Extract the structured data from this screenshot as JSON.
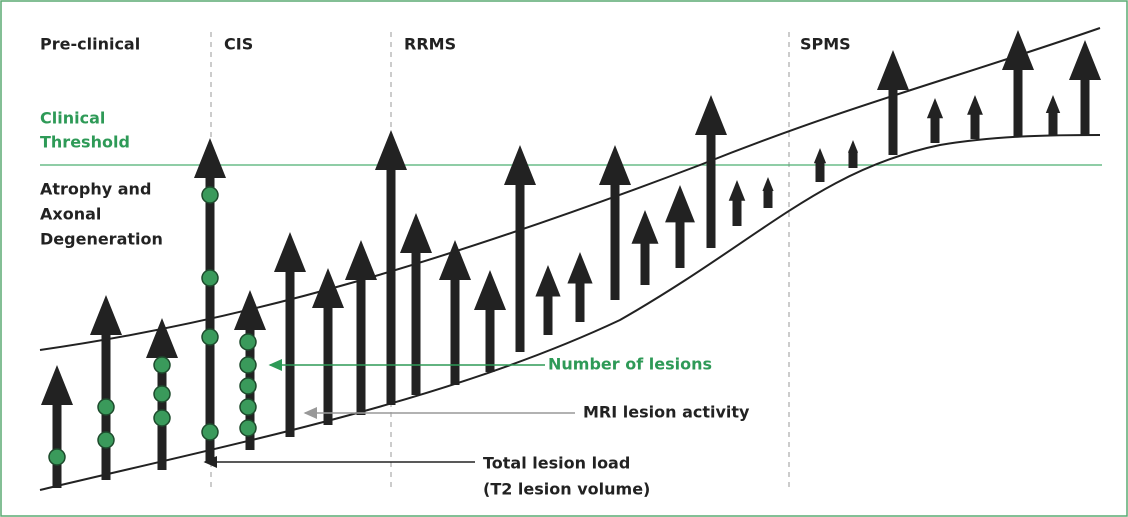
{
  "stages": [
    "Pre-clinical",
    "CIS",
    "RRMS",
    "SPMS"
  ],
  "threshold_label": [
    "Clinical",
    "Threshold"
  ],
  "atrophy_label": [
    "Atrophy and",
    "Axonal",
    "Degeneration"
  ],
  "callouts": {
    "lesions": "Number of lesions",
    "mri": "MRI lesion activity",
    "load": [
      "Total lesion load",
      "(T2 lesion volume)"
    ]
  }
}
